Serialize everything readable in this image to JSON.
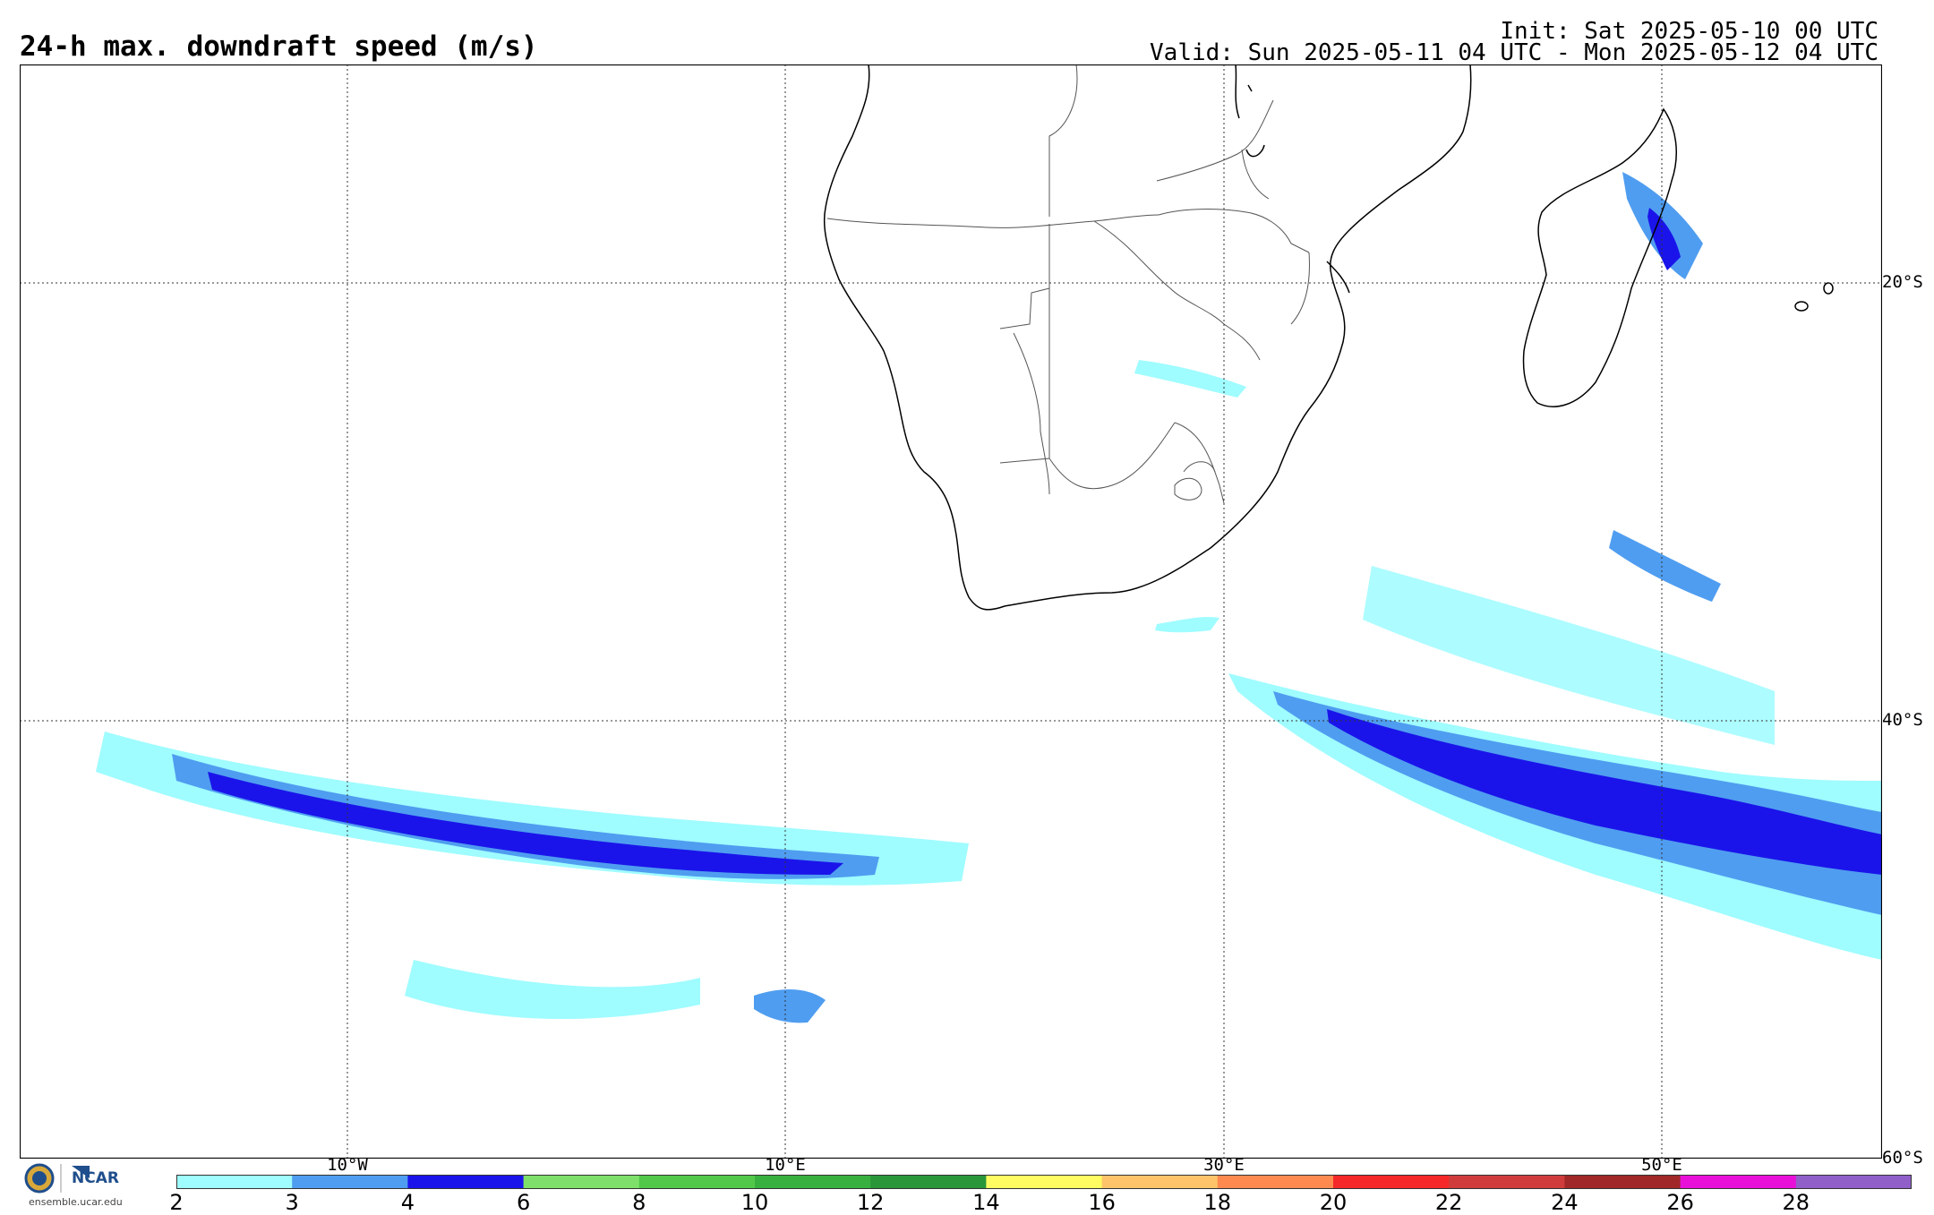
{
  "header": {
    "title": "24-h max. downdraft speed (m/s)",
    "init": "Init: Sat 2025-05-10 00 UTC",
    "valid": "Valid: Sun 2025-05-11 04 UTC - Mon 2025-05-12 04 UTC"
  },
  "map": {
    "lon_range": [
      -25,
      60
    ],
    "lat_range": [
      -60,
      -10
    ],
    "lon_ticks": [
      {
        "value": -10,
        "label": "10°W"
      },
      {
        "value": 10,
        "label": "10°E"
      },
      {
        "value": 30,
        "label": "30°E"
      },
      {
        "value": 50,
        "label": "50°E"
      }
    ],
    "lat_ticks": [
      {
        "value": -20,
        "label": "20°S"
      },
      {
        "value": -40,
        "label": "40°S"
      },
      {
        "value": -60,
        "label": "60°S"
      }
    ],
    "grid": true
  },
  "colorbar": {
    "levels": [
      2,
      3,
      4,
      6,
      8,
      10,
      12,
      14,
      16,
      18,
      20,
      22,
      24,
      26,
      28
    ],
    "colors": [
      "#9ffcff",
      "#4f9df0",
      "#1a14ea",
      "#7ee06a",
      "#52c84a",
      "#38b040",
      "#2a963a",
      "#fefc60",
      "#ffc46a",
      "#ff8a50",
      "#f42828",
      "#d03c3c",
      "#a02828",
      "#e810d8",
      "#9060c8"
    ],
    "label_values": [
      "2",
      "3",
      "4",
      "6",
      "8",
      "10",
      "12",
      "14",
      "16",
      "18",
      "20",
      "22",
      "24",
      "26",
      "28"
    ]
  },
  "logo": {
    "org": "NCAR",
    "url": "ensemble.ucar.edu"
  }
}
